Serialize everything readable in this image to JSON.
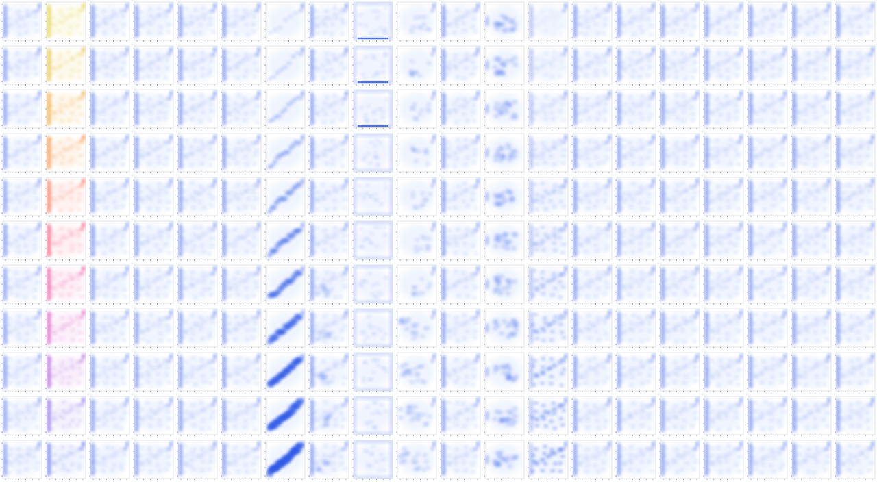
{
  "chart_data": {
    "type": "heatmap",
    "layout": "small-multiples",
    "grid_rows": 11,
    "grid_cols": 20,
    "axis_tick_labels_visible": false,
    "default_color": "#2a55e6",
    "column_colors": {
      "1": [
        "#d8c81e",
        "#e0b41c",
        "#ec9416",
        "#f2761a",
        "#f55a3a",
        "#ef3e62",
        "#e83488",
        "#d23ab4",
        "#a447d2",
        "#7454e0",
        "#4a5ee8"
      ]
    },
    "column_patterns": {
      "0": "base",
      "1": "base",
      "2": "base",
      "3": "base",
      "4": "base",
      "5": "base",
      "6": "diagonal-growing",
      "7": "base-shifted",
      "8": "frame",
      "9": "sparse-right",
      "10": "base",
      "11": "center-cluster",
      "12": "fading-in",
      "13": "base",
      "14": "base",
      "15": "base",
      "16": "base",
      "17": "base",
      "18": "base",
      "19": "base"
    }
  }
}
